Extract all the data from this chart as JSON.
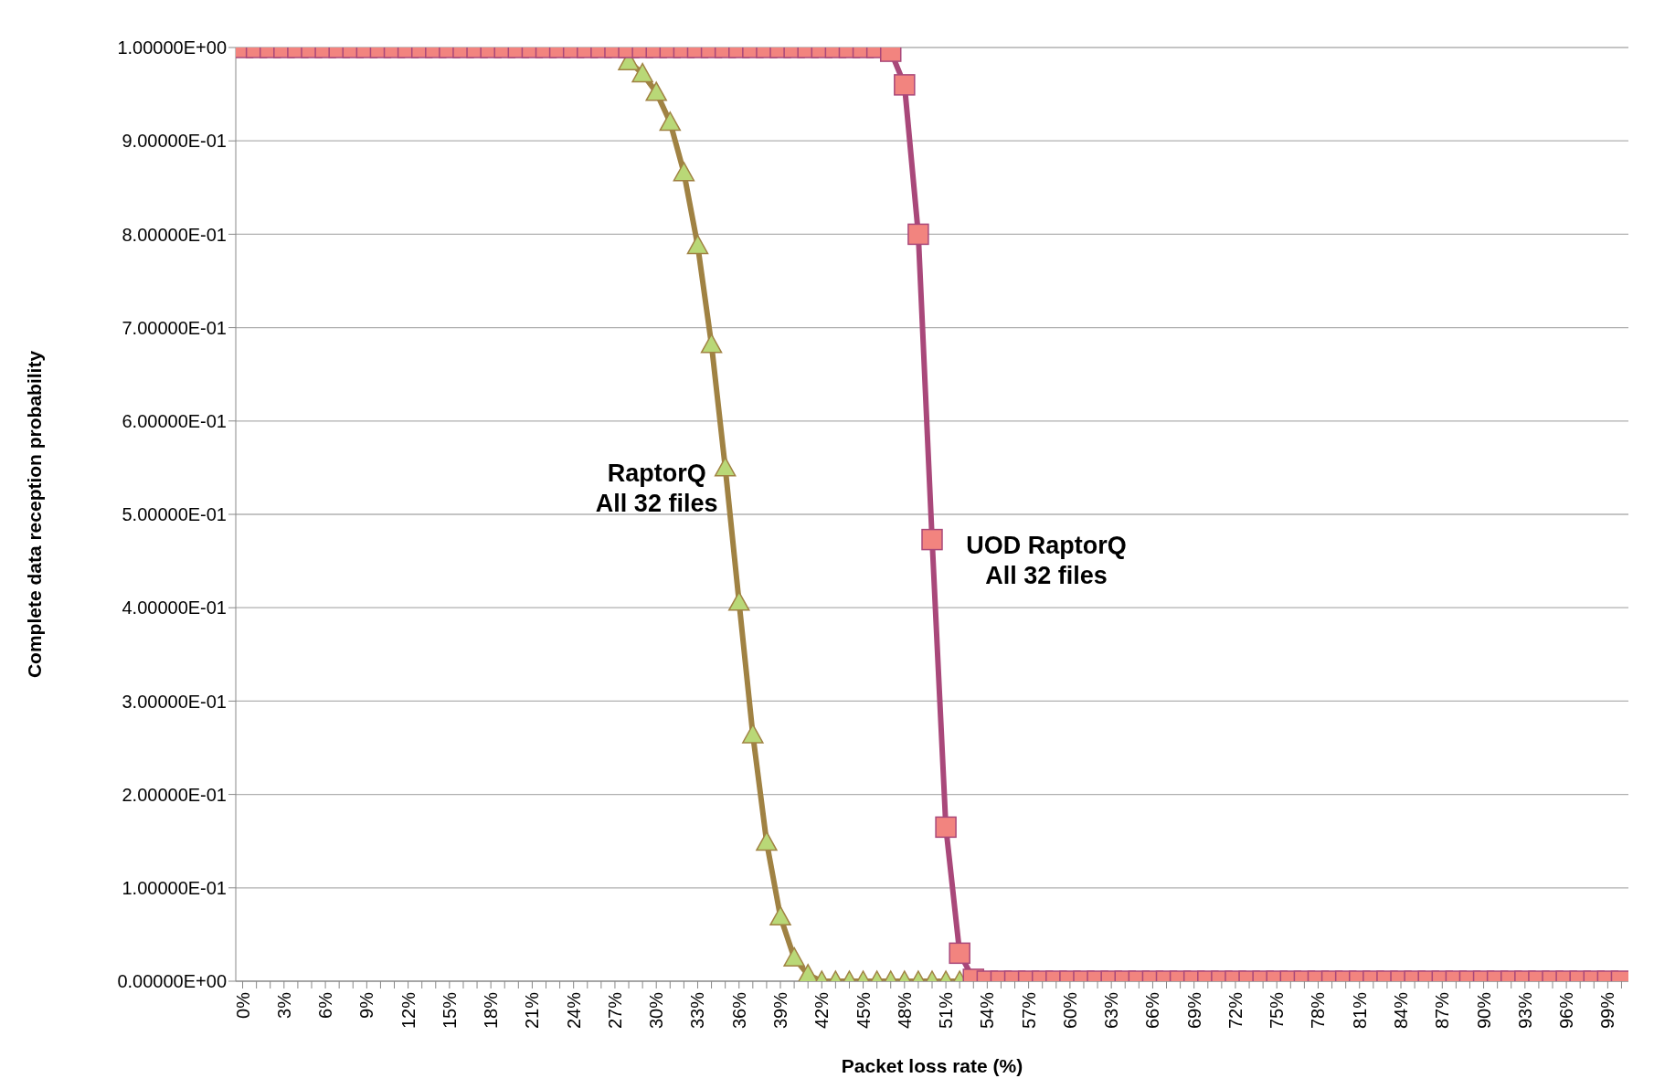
{
  "chart_data": {
    "type": "line",
    "xlabel": "Packet loss rate (%)",
    "ylabel": "Complete data reception probability",
    "categories": [
      "0%",
      null,
      null,
      "3%",
      null,
      null,
      "6%",
      null,
      null,
      "9%",
      null,
      null,
      "12%",
      null,
      null,
      "15%",
      null,
      null,
      "18%",
      null,
      null,
      "21%",
      null,
      null,
      "24%",
      null,
      null,
      "27%",
      null,
      null,
      "30%",
      null,
      null,
      "33%",
      null,
      null,
      "36%",
      null,
      null,
      "39%",
      null,
      null,
      "42%",
      null,
      null,
      "45%",
      null,
      null,
      "48%",
      null,
      null,
      "51%",
      null,
      null,
      "54%",
      null,
      null,
      "57%",
      null,
      null,
      "60%",
      null,
      null,
      "63%",
      null,
      null,
      "66%",
      null,
      null,
      "69%",
      null,
      null,
      "72%",
      null,
      null,
      "75%",
      null,
      null,
      "78%",
      null,
      null,
      "81%",
      null,
      null,
      "84%",
      null,
      null,
      "87%",
      null,
      null,
      "90%",
      null,
      null,
      "93%",
      null,
      null,
      "96%",
      null,
      null,
      "99%",
      null
    ],
    "series": [
      {
        "name": "RaptorQ\nAll 32 files",
        "color": "#a08243",
        "marker": "triangle",
        "values": [
          null,
          null,
          null,
          null,
          null,
          null,
          null,
          null,
          null,
          null,
          null,
          null,
          null,
          null,
          null,
          null,
          null,
          null,
          null,
          null,
          null,
          null,
          null,
          null,
          null,
          null,
          null,
          null,
          0.985,
          0.972,
          0.952,
          0.92,
          0.866,
          0.788,
          0.682,
          0.55,
          0.406,
          0.264,
          0.149,
          0.069,
          0.025,
          0.007,
          0,
          0,
          0,
          0,
          0,
          0,
          0,
          0,
          0,
          0,
          0,
          null,
          null,
          null,
          null,
          null,
          null,
          null,
          null,
          null,
          null,
          null,
          null,
          null,
          null,
          null,
          null,
          null,
          null,
          null,
          null,
          null,
          null,
          null,
          null,
          null,
          null,
          null,
          null,
          null,
          null,
          null,
          null,
          null,
          null,
          null,
          null,
          null,
          null,
          null,
          null,
          null,
          null,
          null,
          null,
          null,
          null,
          null,
          null
        ]
      },
      {
        "name": "UOD RaptorQ\nAll 32 files",
        "color": "#a9487a",
        "marker": "square",
        "values": [
          1,
          1,
          1,
          1,
          1,
          1,
          1,
          1,
          1,
          1,
          1,
          1,
          1,
          1,
          1,
          1,
          1,
          1,
          1,
          1,
          1,
          1,
          1,
          1,
          1,
          1,
          1,
          1,
          1,
          1,
          1,
          1,
          1,
          1,
          1,
          1,
          1,
          1,
          1,
          1,
          1,
          1,
          1,
          1,
          1,
          1,
          1,
          0.996,
          0.96,
          0.8,
          0.473,
          0.165,
          0.03,
          0.002,
          0,
          0,
          0,
          0,
          0,
          0,
          0,
          0,
          0,
          0,
          0,
          0,
          0,
          0,
          0,
          0,
          0,
          0,
          0,
          0,
          0,
          0,
          0,
          0,
          0,
          0,
          0,
          0,
          0,
          0,
          0,
          0,
          0,
          0,
          0,
          0,
          0,
          0,
          0,
          0,
          0,
          0,
          0,
          0,
          0,
          0,
          0
        ]
      }
    ],
    "ylim": [
      0,
      1
    ],
    "yticks": [
      {
        "value": 0,
        "label": "0.00000E+00"
      },
      {
        "value": 0.1,
        "label": "1.00000E-01"
      },
      {
        "value": 0.2,
        "label": "2.00000E-01"
      },
      {
        "value": 0.3,
        "label": "3.00000E-01"
      },
      {
        "value": 0.4,
        "label": "4.00000E-01"
      },
      {
        "value": 0.5,
        "label": "5.00000E-01"
      },
      {
        "value": 0.6,
        "label": "6.00000E-01"
      },
      {
        "value": 0.7,
        "label": "7.00000E-01"
      },
      {
        "value": 0.8,
        "label": "8.00000E-01"
      },
      {
        "value": 0.9,
        "label": "9.00000E-01"
      },
      {
        "value": 1,
        "label": "1.00000E+00"
      }
    ],
    "grid": "y",
    "legend": false
  }
}
